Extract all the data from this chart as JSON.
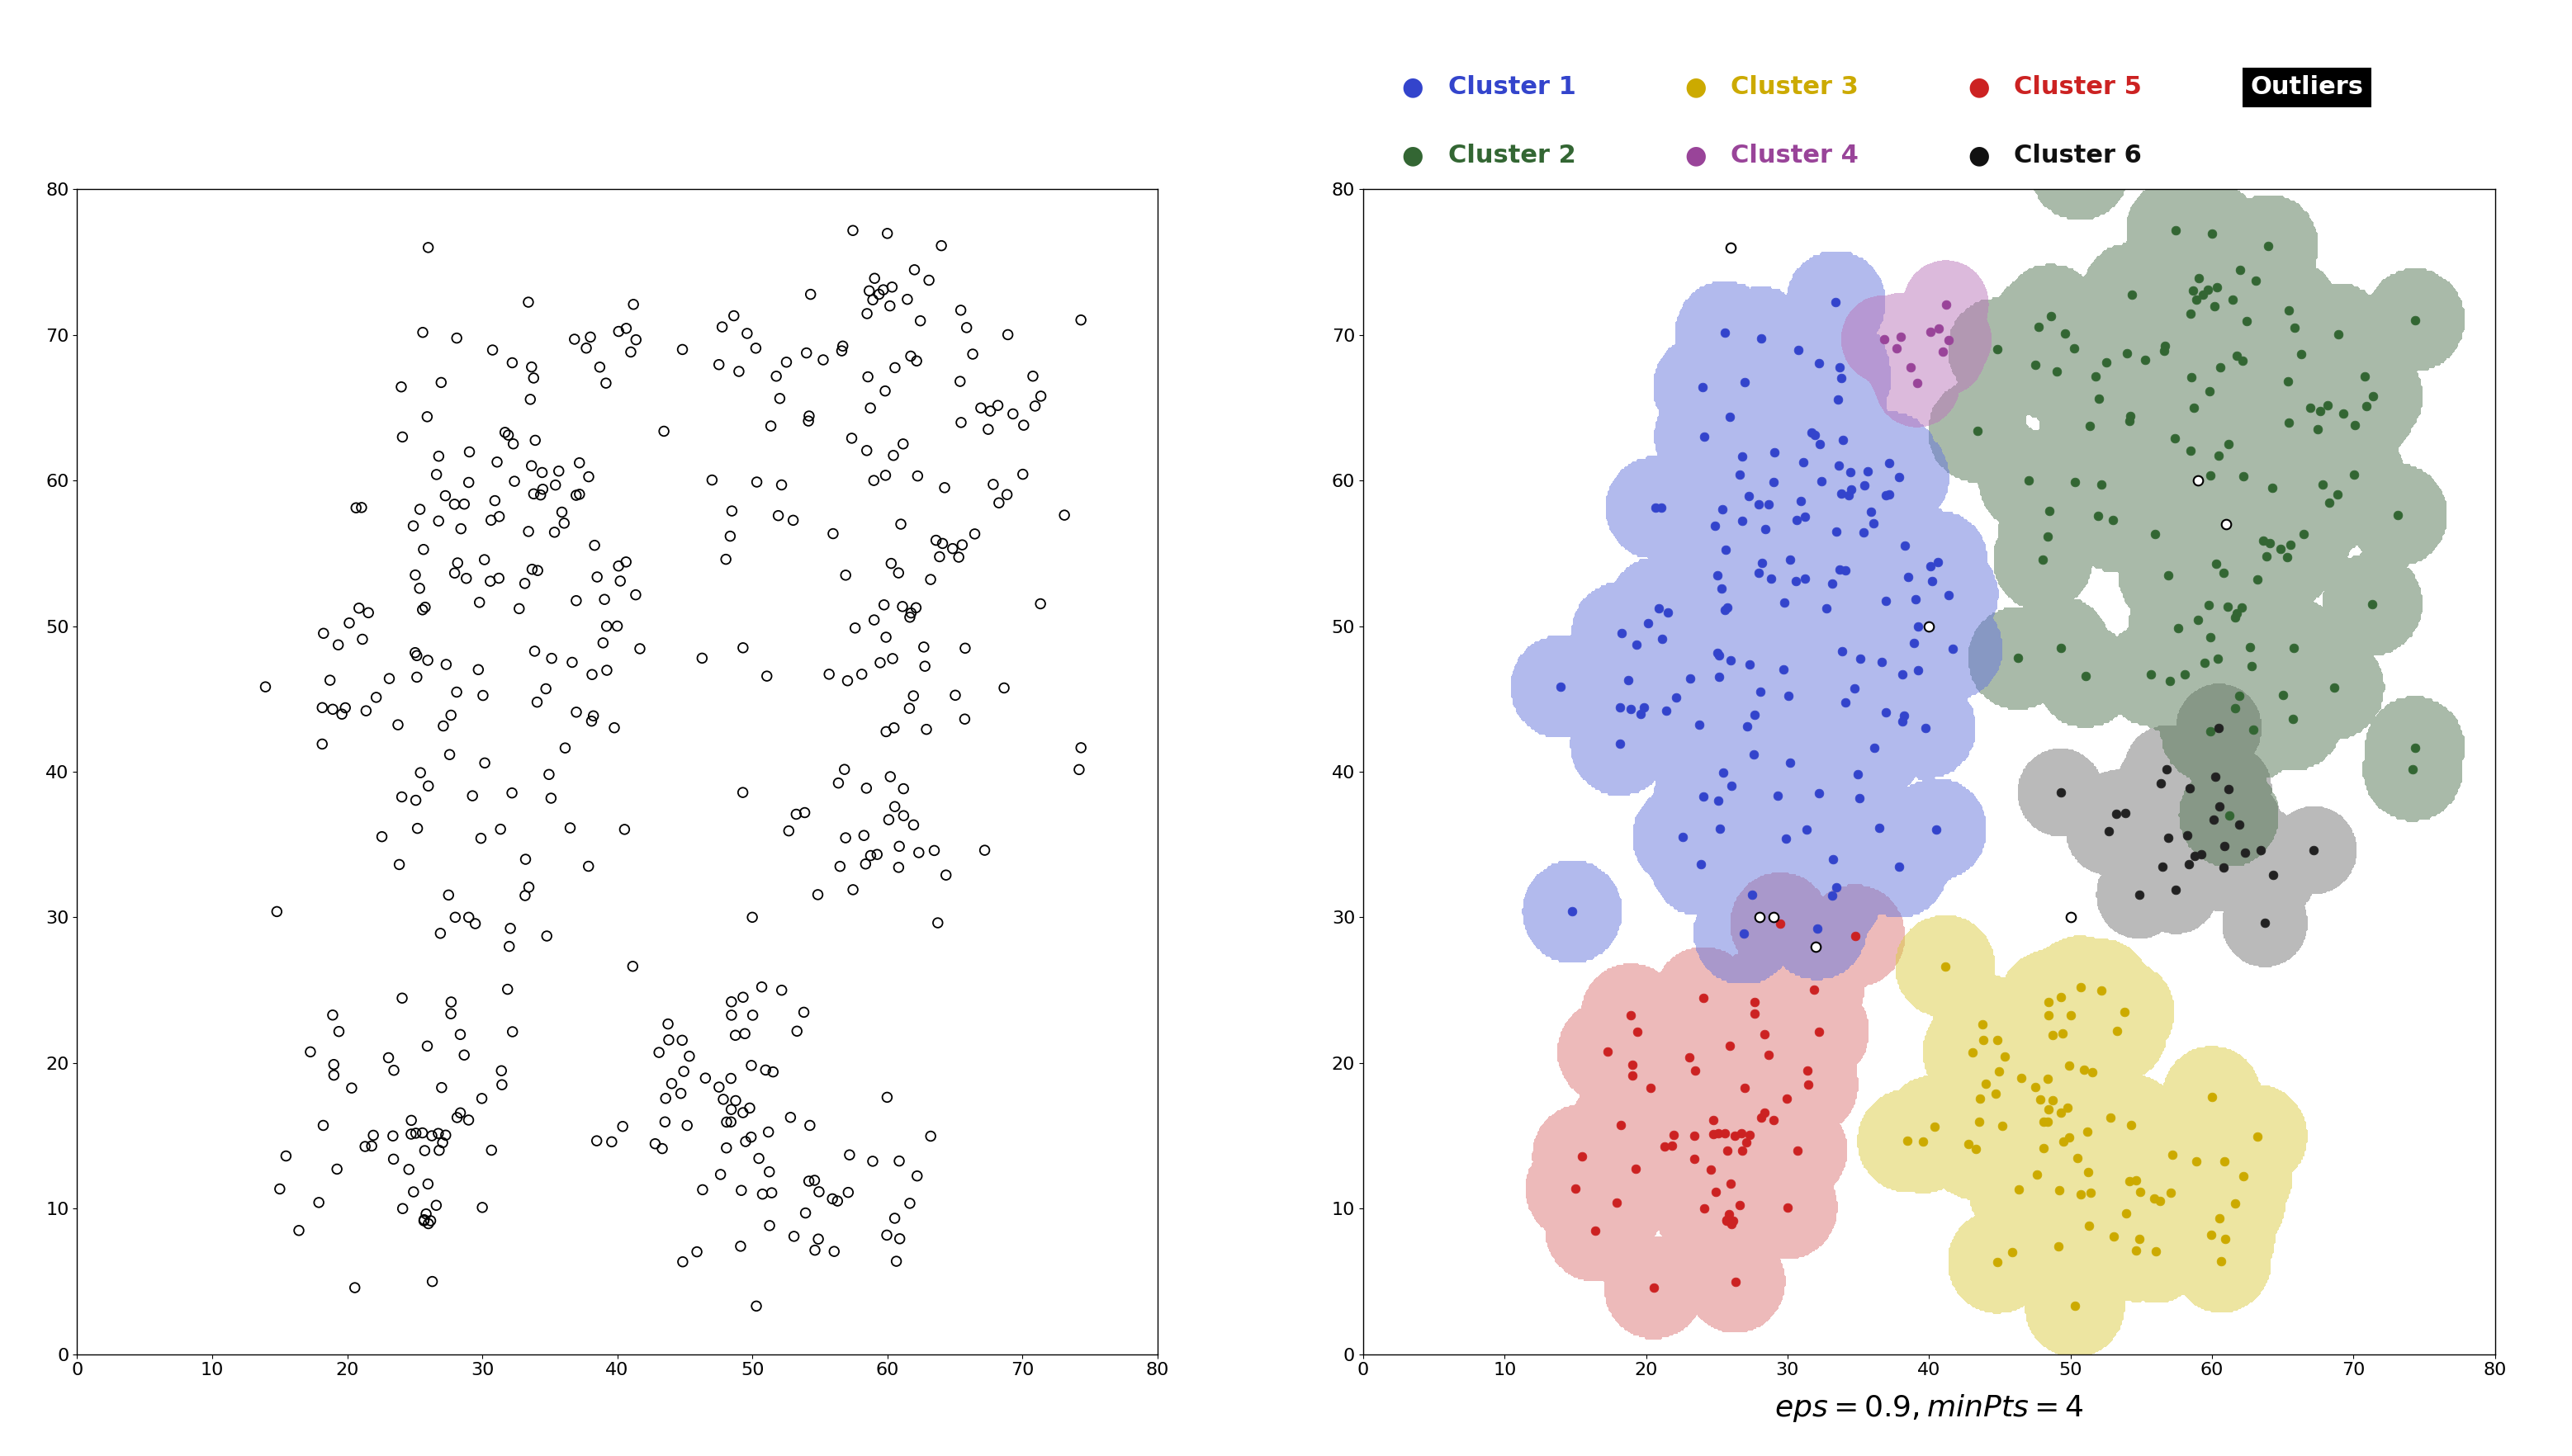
{
  "xlim": [
    0,
    80
  ],
  "ylim": [
    0,
    80
  ],
  "xticks": [
    0,
    10,
    20,
    30,
    40,
    50,
    60,
    70,
    80
  ],
  "yticks": [
    0,
    10,
    20,
    30,
    40,
    50,
    60,
    70,
    80
  ],
  "formula_text": "$eps = 0.9, minPts = 4$",
  "cluster1_color": "#3344cc",
  "cluster1_bg": "#6677dd",
  "cluster2_color": "#336633",
  "cluster2_bg": "#557755",
  "cluster3_color": "#ccaa00",
  "cluster3_bg": "#ddcc44",
  "cluster4_color": "#994499",
  "cluster4_bg": "#bb77bb",
  "cluster5_color": "#cc2222",
  "cluster5_bg": "#dd7777",
  "cluster6_color": "#222222",
  "cluster6_bg": "#777777",
  "bg_alpha": 0.5,
  "dot_size": 60,
  "open_dot_size": 70,
  "legend_fontsize": 22,
  "tick_fontsize": 16,
  "formula_fontsize": 26
}
